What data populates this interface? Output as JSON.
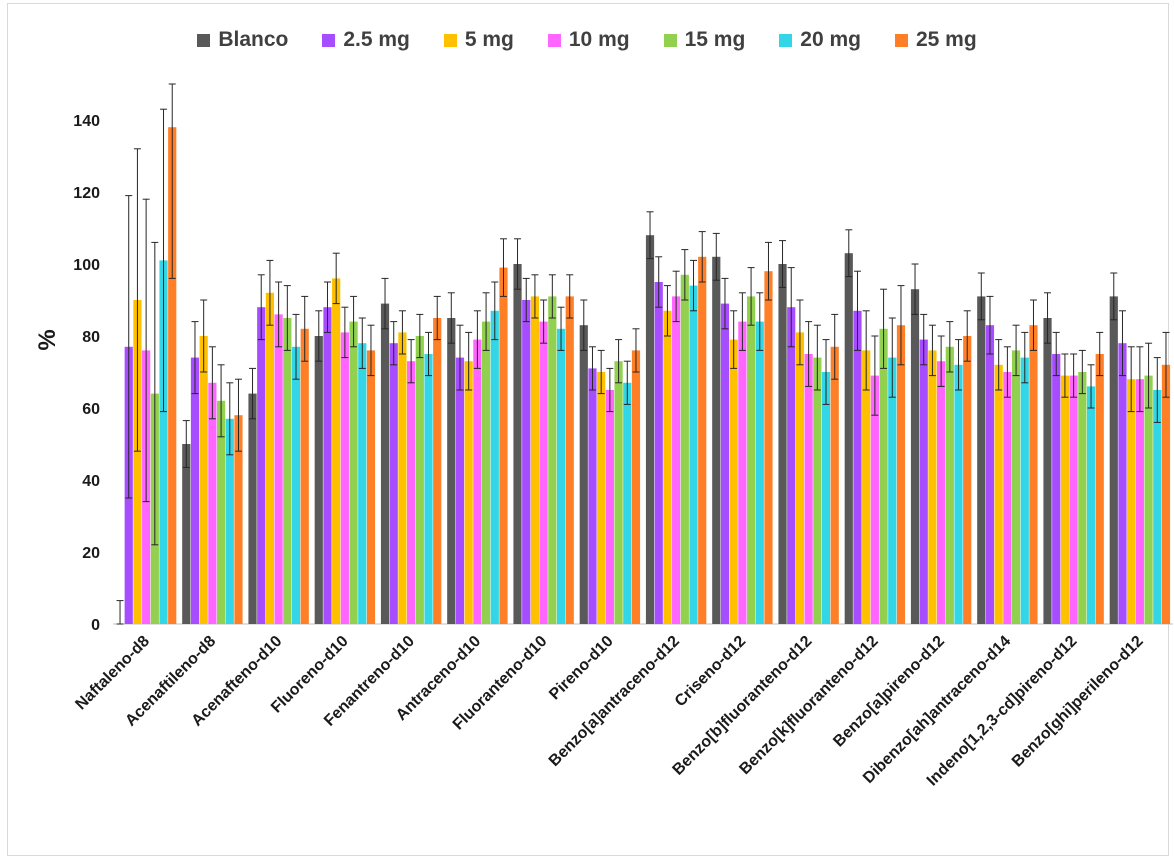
{
  "chart_data": {
    "type": "bar",
    "title": "",
    "xlabel": "",
    "ylabel": "%",
    "ylim": [
      0,
      150
    ],
    "yticks": [
      0,
      20,
      40,
      60,
      80,
      100,
      120,
      140
    ],
    "grid": false,
    "legend_position": "top",
    "categories": [
      "Naftaleno-d8",
      "Acenaftileno-d8",
      "Acenafteno-d10",
      "Fluoreno-d10",
      "Fenantreno-d10",
      "Antraceno-d10",
      "Fluoranteno-d10",
      "Pireno-d10",
      "Benzo[a]antraceno-d12",
      "Criseno-d12",
      "Benzo[b]fluoranteno-d12",
      "Benzo[k]fluoranteno-d12",
      "Benzo[a]pireno-d12",
      "Dibenzo[ah]antraceno-d14",
      "Indeno[1,2,3-cd]pireno-d12",
      "Benzo[ghi]perileno-d12"
    ],
    "series": [
      {
        "name": "Blanco",
        "color": "#595959",
        "values": [
          0,
          50,
          64,
          80,
          89,
          85,
          100,
          83,
          108,
          102,
          100,
          103,
          93,
          91,
          85,
          91
        ],
        "errors": [
          6.5,
          6.5,
          7,
          7,
          7,
          7,
          7,
          7,
          6.5,
          6.5,
          6.5,
          6.5,
          7,
          6.5,
          7,
          6.5
        ]
      },
      {
        "name": "2.5 mg",
        "color": "#a64dff",
        "values": [
          77,
          74,
          88,
          88,
          78,
          74,
          90,
          71,
          95,
          89,
          88,
          87,
          79,
          83,
          75,
          78
        ],
        "errors": [
          42,
          10,
          9,
          7,
          6,
          9,
          6,
          6,
          7,
          7,
          11,
          11,
          7,
          8,
          6,
          9
        ]
      },
      {
        "name": "5 mg",
        "color": "#ffc000",
        "values": [
          90,
          80,
          92,
          96,
          81,
          73,
          91,
          70,
          87,
          79,
          81,
          76,
          76,
          72,
          69,
          68
        ]
      },
      {
        "name": "10 mg",
        "color": "#ff66ff",
        "values": [
          76,
          67,
          86,
          81,
          73,
          79,
          84,
          65,
          91,
          84,
          75,
          69,
          73,
          70,
          69,
          68
        ]
      },
      {
        "name": "15 mg",
        "color": "#92d050",
        "values": [
          64,
          62,
          85,
          84,
          80,
          84,
          91,
          73,
          97,
          91,
          74,
          82,
          77,
          76,
          70,
          69
        ]
      },
      {
        "name": "20 mg",
        "color": "#33d6e6",
        "values": [
          101,
          57,
          77,
          78,
          75,
          87,
          82,
          67,
          94,
          84,
          70,
          74,
          72,
          74,
          66,
          65
        ]
      },
      {
        "name": "25 mg",
        "color": "#ff7f27",
        "values": [
          138,
          58,
          82,
          76,
          85,
          99,
          91,
          76,
          102,
          98,
          77,
          83,
          80,
          83,
          75,
          72
        ]
      }
    ],
    "error_values": {
      "5 mg": [
        42,
        10,
        9,
        7,
        6,
        8,
        6,
        6,
        7,
        8,
        9,
        11,
        7,
        7,
        6,
        9
      ],
      "10 mg": [
        42,
        10,
        9,
        7,
        6,
        8,
        6,
        6,
        7,
        8,
        9,
        11,
        7,
        7,
        6,
        9
      ],
      "15 mg": [
        42,
        10,
        9,
        7,
        6,
        8,
        6,
        6,
        7,
        8,
        9,
        11,
        7,
        7,
        6,
        9
      ],
      "20 mg": [
        42,
        10,
        9,
        7,
        6,
        8,
        6,
        6,
        7,
        8,
        9,
        11,
        7,
        7,
        6,
        9
      ],
      "25 mg": [
        42,
        10,
        9,
        7,
        6,
        8,
        6,
        6,
        7,
        8,
        9,
        11,
        7,
        7,
        6,
        9
      ]
    }
  }
}
